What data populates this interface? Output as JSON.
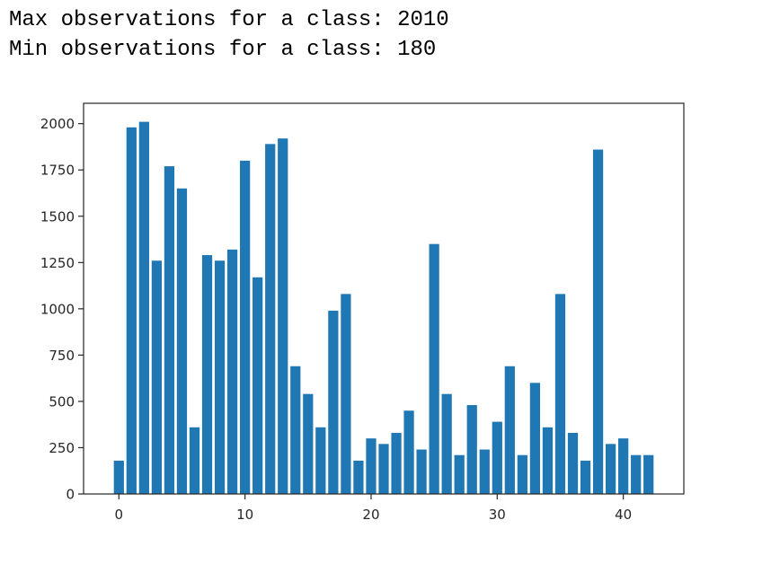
{
  "output": {
    "line1": "Max observations for a class: 2010",
    "line2": "Min observations for a class: 180"
  },
  "chart_data": {
    "type": "bar",
    "title": "",
    "xlabel": "",
    "ylabel": "",
    "x": [
      0,
      1,
      2,
      3,
      4,
      5,
      6,
      7,
      8,
      9,
      10,
      11,
      12,
      13,
      14,
      15,
      16,
      17,
      18,
      19,
      20,
      21,
      22,
      23,
      24,
      25,
      26,
      27,
      28,
      29,
      30,
      31,
      32,
      33,
      34,
      35,
      36,
      37,
      38,
      39,
      40,
      41,
      42
    ],
    "values": [
      180,
      1980,
      2010,
      1260,
      1770,
      1650,
      360,
      1290,
      1260,
      1320,
      1800,
      1170,
      1890,
      1920,
      690,
      540,
      360,
      990,
      1080,
      180,
      300,
      270,
      330,
      450,
      240,
      1350,
      540,
      210,
      480,
      240,
      390,
      690,
      210,
      600,
      360,
      1080,
      330,
      180,
      1860,
      270,
      300,
      210,
      210
    ],
    "xlim": [
      -2.8,
      44.8
    ],
    "ylim": [
      0,
      2110
    ],
    "xticks": [
      0,
      10,
      20,
      30,
      40
    ],
    "yticks": [
      0,
      250,
      500,
      750,
      1000,
      1250,
      1500,
      1750,
      2000
    ],
    "bar_color": "#1f77b4",
    "grid": false
  }
}
